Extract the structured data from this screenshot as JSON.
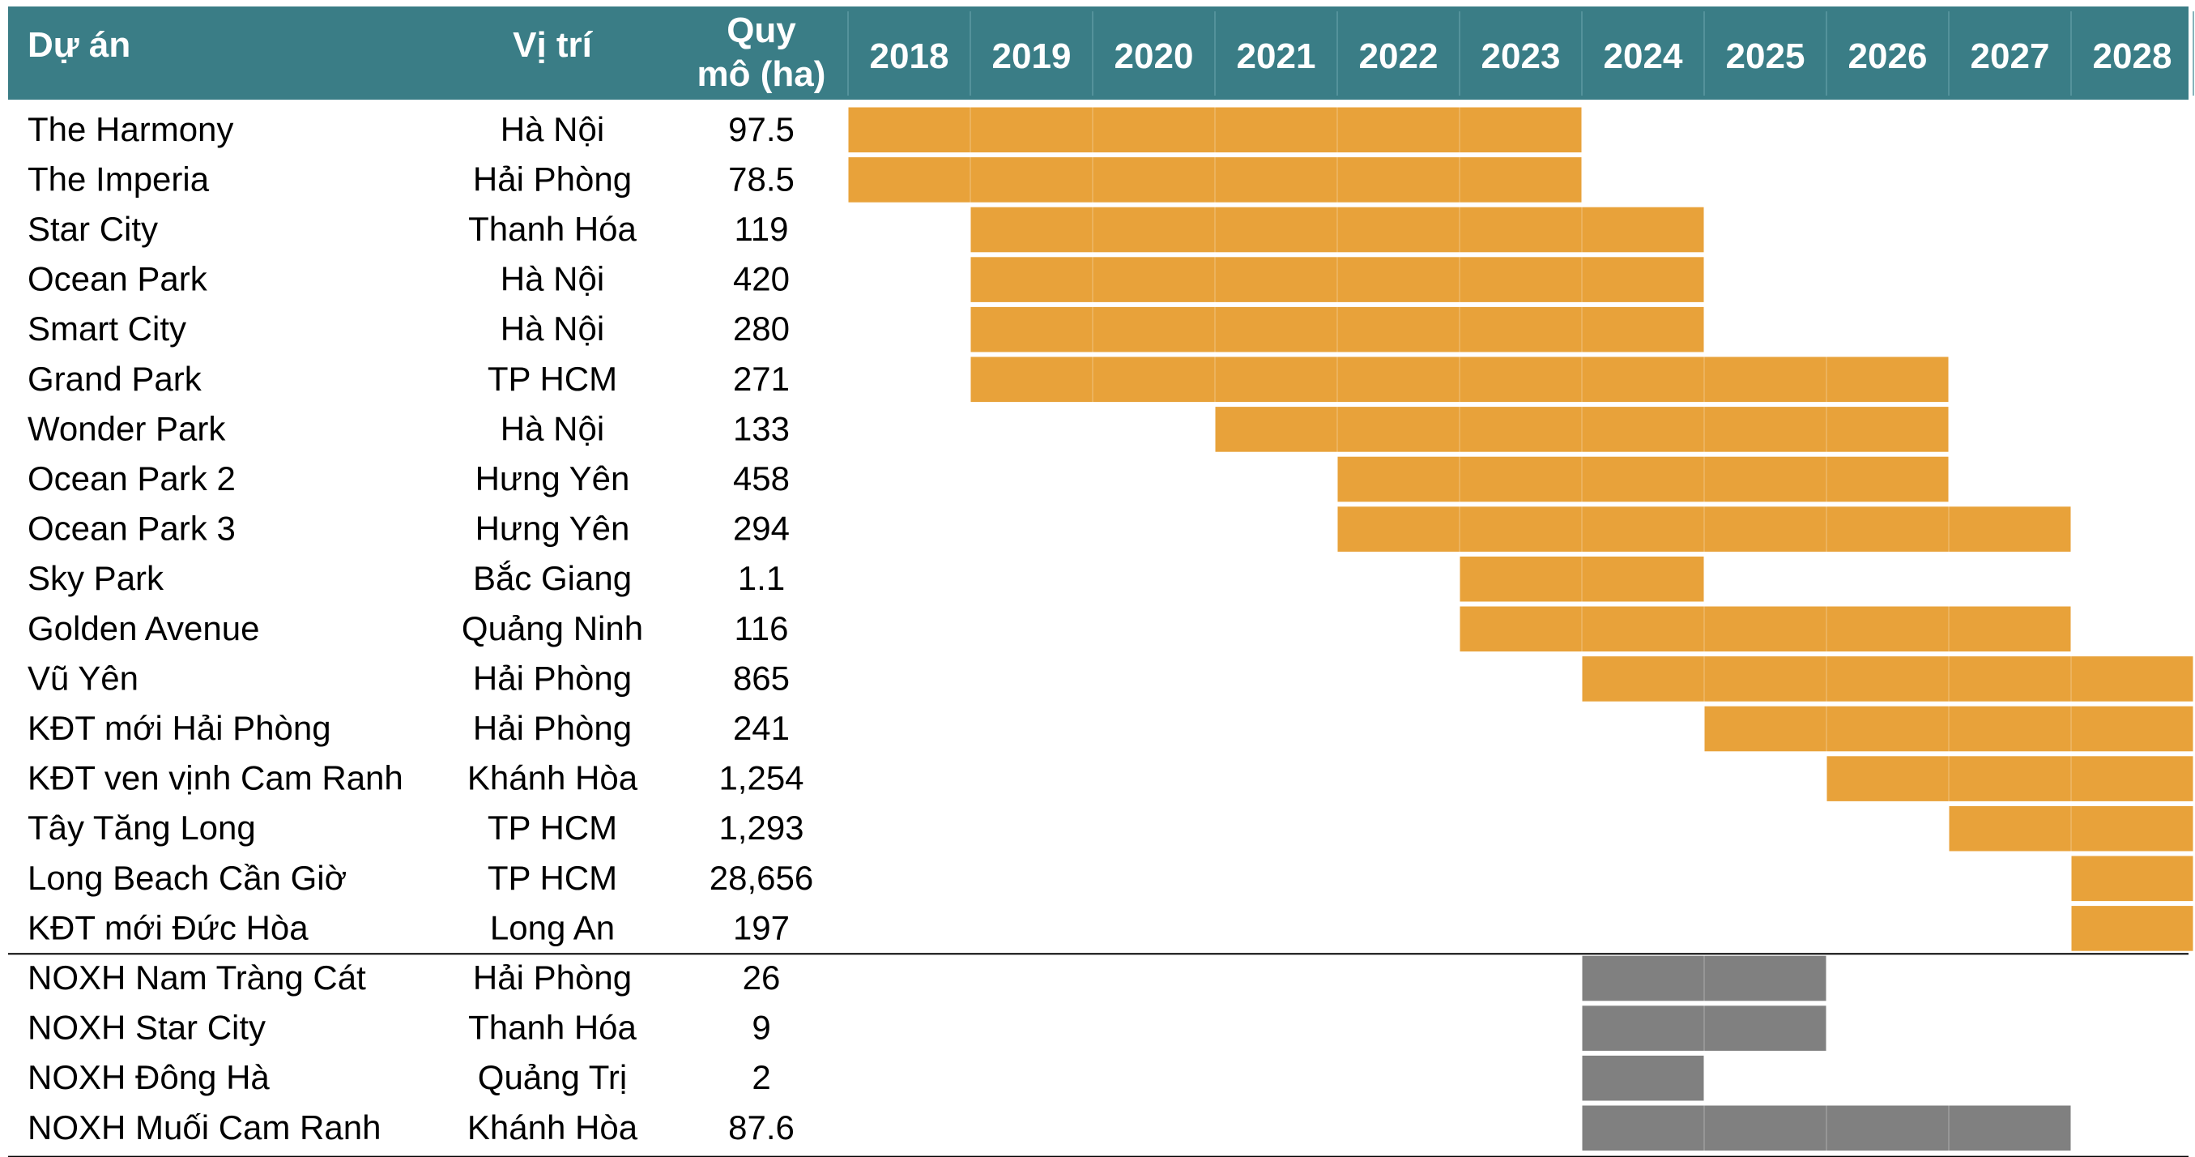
{
  "colors": {
    "header_bg": "#3a7d86",
    "header_text": "#ffffff",
    "development": "#e8a23a",
    "social_housing": "#808080",
    "grid": "#bfbfbf"
  },
  "chart_data": {
    "type": "gantt-table",
    "columns": {
      "project": "Dự án",
      "location": "Vị trí",
      "scale_line1": "Quy",
      "scale_line2": "mô (ha)"
    },
    "years": [
      "2018",
      "2019",
      "2020",
      "2021",
      "2022",
      "2023",
      "2024",
      "2025",
      "2026",
      "2027",
      "2028"
    ],
    "rows": [
      {
        "name": "The Harmony",
        "location": "Hà Nội",
        "area": "97.5",
        "start": 2018,
        "end": 2023,
        "group": "development"
      },
      {
        "name": "The Imperia",
        "location": "Hải Phòng",
        "area": "78.5",
        "start": 2018,
        "end": 2023,
        "group": "development"
      },
      {
        "name": "Star City",
        "location": "Thanh Hóa",
        "area": "119",
        "start": 2019,
        "end": 2024,
        "group": "development"
      },
      {
        "name": "Ocean Park",
        "location": "Hà Nội",
        "area": "420",
        "start": 2019,
        "end": 2024,
        "group": "development"
      },
      {
        "name": "Smart City",
        "location": "Hà Nội",
        "area": "280",
        "start": 2019,
        "end": 2024,
        "group": "development"
      },
      {
        "name": "Grand Park",
        "location": "TP HCM",
        "area": "271",
        "start": 2019,
        "end": 2026,
        "group": "development"
      },
      {
        "name": "Wonder Park",
        "location": "Hà Nội",
        "area": "133",
        "start": 2021,
        "end": 2026,
        "group": "development"
      },
      {
        "name": "Ocean Park 2",
        "location": "Hưng Yên",
        "area": "458",
        "start": 2022,
        "end": 2026,
        "group": "development"
      },
      {
        "name": "Ocean Park 3",
        "location": "Hưng Yên",
        "area": "294",
        "start": 2022,
        "end": 2027,
        "group": "development"
      },
      {
        "name": "Sky Park",
        "location": "Bắc Giang",
        "area": "1.1",
        "start": 2023,
        "end": 2024,
        "group": "development"
      },
      {
        "name": "Golden Avenue",
        "location": "Quảng Ninh",
        "area": "116",
        "start": 2023,
        "end": 2027,
        "group": "development"
      },
      {
        "name": "Vũ Yên",
        "location": "Hải Phòng",
        "area": "865",
        "start": 2024,
        "end": 2028,
        "group": "development"
      },
      {
        "name": "KĐT mới Hải Phòng",
        "location": "Hải Phòng",
        "area": "241",
        "start": 2025,
        "end": 2028,
        "group": "development"
      },
      {
        "name": "KĐT ven vịnh Cam Ranh",
        "location": "Khánh Hòa",
        "area": "1,254",
        "start": 2026,
        "end": 2028,
        "group": "development"
      },
      {
        "name": "Tây Tăng Long",
        "location": "TP HCM",
        "area": "1,293",
        "start": 2027,
        "end": 2028,
        "group": "development"
      },
      {
        "name": "Long Beach Cần Giờ",
        "location": "TP HCM",
        "area": "28,656",
        "start": 2028,
        "end": 2028,
        "group": "development"
      },
      {
        "name": "KĐT mới Đức Hòa",
        "location": "Long An",
        "area": "197",
        "start": 2028,
        "end": 2028,
        "group": "development"
      },
      {
        "name": "NOXH Nam Tràng Cát",
        "location": "Hải Phòng",
        "area": "26",
        "start": 2024,
        "end": 2025,
        "group": "social_housing"
      },
      {
        "name": "NOXH Star City",
        "location": "Thanh Hóa",
        "area": "9",
        "start": 2024,
        "end": 2025,
        "group": "social_housing"
      },
      {
        "name": "NOXH Đông Hà",
        "location": "Quảng Trị",
        "area": "2",
        "start": 2024,
        "end": 2024,
        "group": "social_housing"
      },
      {
        "name": "NOXH Muối Cam Ranh",
        "location": "Khánh Hòa",
        "area": "87.6",
        "start": 2024,
        "end": 2027,
        "group": "social_housing"
      }
    ]
  }
}
